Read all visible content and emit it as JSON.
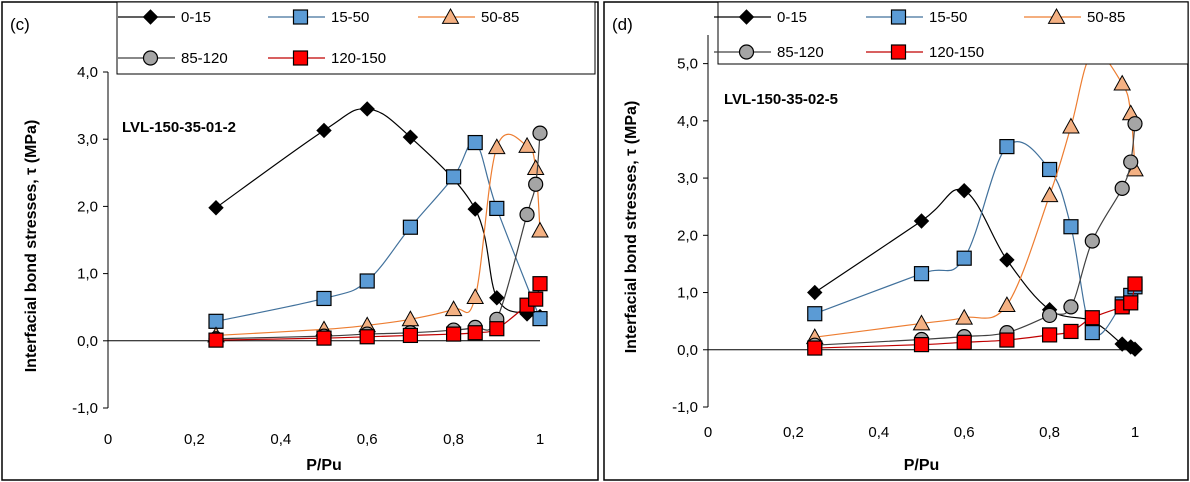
{
  "chart_data": [
    {
      "type": "line",
      "panel_label": "(c)",
      "annotation": "LVL-150-35-01-2",
      "xlabel": "P/Pu",
      "ylabel": "Interfacial bond stresses, τ (MPa)",
      "xlim": [
        0,
        1
      ],
      "ylim": [
        -1,
        4
      ],
      "x_ticks": [
        "0",
        "0,2",
        "0,4",
        "0,6",
        "0,8",
        "1"
      ],
      "y_ticks": [
        "-1,0",
        "0,0",
        "1,0",
        "2,0",
        "3,0",
        "4,0"
      ],
      "legend_position": "top",
      "series": [
        {
          "name": "0-15",
          "marker": "diamond",
          "color": "#000000",
          "fill": "#000000",
          "points": [
            [
              0.25,
              1.98
            ],
            [
              0.5,
              3.13
            ],
            [
              0.6,
              3.45
            ],
            [
              0.7,
              3.03
            ],
            [
              0.85,
              1.96
            ],
            [
              0.9,
              0.64
            ],
            [
              0.97,
              0.4
            ],
            [
              1.0,
              0.36
            ]
          ]
        },
        {
          "name": "15-50",
          "marker": "square",
          "color": "#41719c",
          "fill": "#5b9bd5",
          "points": [
            [
              0.25,
              0.29
            ],
            [
              0.5,
              0.63
            ],
            [
              0.6,
              0.89
            ],
            [
              0.7,
              1.69
            ],
            [
              0.8,
              2.44
            ],
            [
              0.85,
              2.95
            ],
            [
              0.9,
              1.97
            ],
            [
              1.0,
              0.33
            ]
          ]
        },
        {
          "name": "50-85",
          "marker": "triangle",
          "color": "#ed7d31",
          "fill": "#f4b183",
          "points": [
            [
              0.25,
              0.08
            ],
            [
              0.5,
              0.17
            ],
            [
              0.6,
              0.23
            ],
            [
              0.7,
              0.32
            ],
            [
              0.8,
              0.47
            ],
            [
              0.85,
              0.65
            ],
            [
              0.9,
              2.88
            ],
            [
              0.97,
              2.9
            ],
            [
              0.99,
              2.57
            ],
            [
              1.0,
              1.64
            ]
          ]
        },
        {
          "name": "85-120",
          "marker": "circle",
          "color": "#404040",
          "fill": "#a5a5a5",
          "points": [
            [
              0.25,
              0.03
            ],
            [
              0.5,
              0.07
            ],
            [
              0.6,
              0.1
            ],
            [
              0.7,
              0.12
            ],
            [
              0.8,
              0.16
            ],
            [
              0.85,
              0.2
            ],
            [
              0.9,
              0.32
            ],
            [
              0.97,
              1.88
            ],
            [
              0.99,
              2.33
            ],
            [
              1.0,
              3.09
            ]
          ]
        },
        {
          "name": "120-150",
          "marker": "square",
          "color": "#c00000",
          "fill": "#ff0000",
          "points": [
            [
              0.25,
              0.01
            ],
            [
              0.5,
              0.04
            ],
            [
              0.6,
              0.06
            ],
            [
              0.7,
              0.08
            ],
            [
              0.8,
              0.1
            ],
            [
              0.85,
              0.12
            ],
            [
              0.9,
              0.18
            ],
            [
              0.97,
              0.53
            ],
            [
              0.99,
              0.62
            ],
            [
              1.0,
              0.85
            ]
          ]
        }
      ]
    },
    {
      "type": "line",
      "panel_label": "(d)",
      "annotation": "LVL-150-35-02-5",
      "xlabel": "P/Pu",
      "ylabel": "Interfacial bond stresses, τ (MPa)",
      "xlim": [
        0,
        1
      ],
      "ylim": [
        -1,
        5.5
      ],
      "x_ticks": [
        "0",
        "0,2",
        "0,4",
        "0,6",
        "0,8",
        "1"
      ],
      "y_ticks": [
        "-1,0",
        "0,0",
        "1,0",
        "2,0",
        "3,0",
        "4,0",
        "5,0"
      ],
      "legend_position": "top",
      "series": [
        {
          "name": "0-15",
          "marker": "diamond",
          "color": "#000000",
          "fill": "#000000",
          "points": [
            [
              0.25,
              1.0
            ],
            [
              0.5,
              2.25
            ],
            [
              0.6,
              2.78
            ],
            [
              0.7,
              1.57
            ],
            [
              0.8,
              0.7
            ],
            [
              0.9,
              0.5
            ],
            [
              0.97,
              0.1
            ],
            [
              0.99,
              0.05
            ],
            [
              1.0,
              0.01
            ]
          ]
        },
        {
          "name": "15-50",
          "marker": "square",
          "color": "#41719c",
          "fill": "#5b9bd5",
          "points": [
            [
              0.25,
              0.63
            ],
            [
              0.5,
              1.33
            ],
            [
              0.6,
              1.6
            ],
            [
              0.7,
              3.55
            ],
            [
              0.8,
              3.15
            ],
            [
              0.85,
              2.15
            ],
            [
              0.9,
              0.3
            ],
            [
              0.97,
              0.8
            ],
            [
              0.99,
              0.95
            ],
            [
              1.0,
              1.1
            ]
          ]
        },
        {
          "name": "50-85",
          "marker": "triangle",
          "color": "#ed7d31",
          "fill": "#f4b183",
          "points": [
            [
              0.25,
              0.22
            ],
            [
              0.5,
              0.46
            ],
            [
              0.6,
              0.56
            ],
            [
              0.7,
              0.78
            ],
            [
              0.8,
              2.7
            ],
            [
              0.85,
              3.9
            ],
            [
              0.9,
              5.18
            ],
            [
              0.97,
              4.65
            ],
            [
              0.99,
              4.13
            ],
            [
              1.0,
              3.15
            ]
          ]
        },
        {
          "name": "85-120",
          "marker": "circle",
          "color": "#404040",
          "fill": "#a5a5a5",
          "points": [
            [
              0.25,
              0.08
            ],
            [
              0.5,
              0.18
            ],
            [
              0.6,
              0.23
            ],
            [
              0.7,
              0.3
            ],
            [
              0.8,
              0.6
            ],
            [
              0.85,
              0.75
            ],
            [
              0.9,
              1.9
            ],
            [
              0.97,
              2.82
            ],
            [
              0.99,
              3.28
            ],
            [
              1.0,
              3.95
            ]
          ]
        },
        {
          "name": "120-150",
          "marker": "square",
          "color": "#c00000",
          "fill": "#ff0000",
          "points": [
            [
              0.25,
              0.03
            ],
            [
              0.5,
              0.09
            ],
            [
              0.6,
              0.13
            ],
            [
              0.7,
              0.17
            ],
            [
              0.8,
              0.26
            ],
            [
              0.85,
              0.32
            ],
            [
              0.9,
              0.56
            ],
            [
              0.97,
              0.75
            ],
            [
              0.99,
              0.82
            ],
            [
              1.0,
              1.15
            ]
          ]
        }
      ]
    }
  ]
}
